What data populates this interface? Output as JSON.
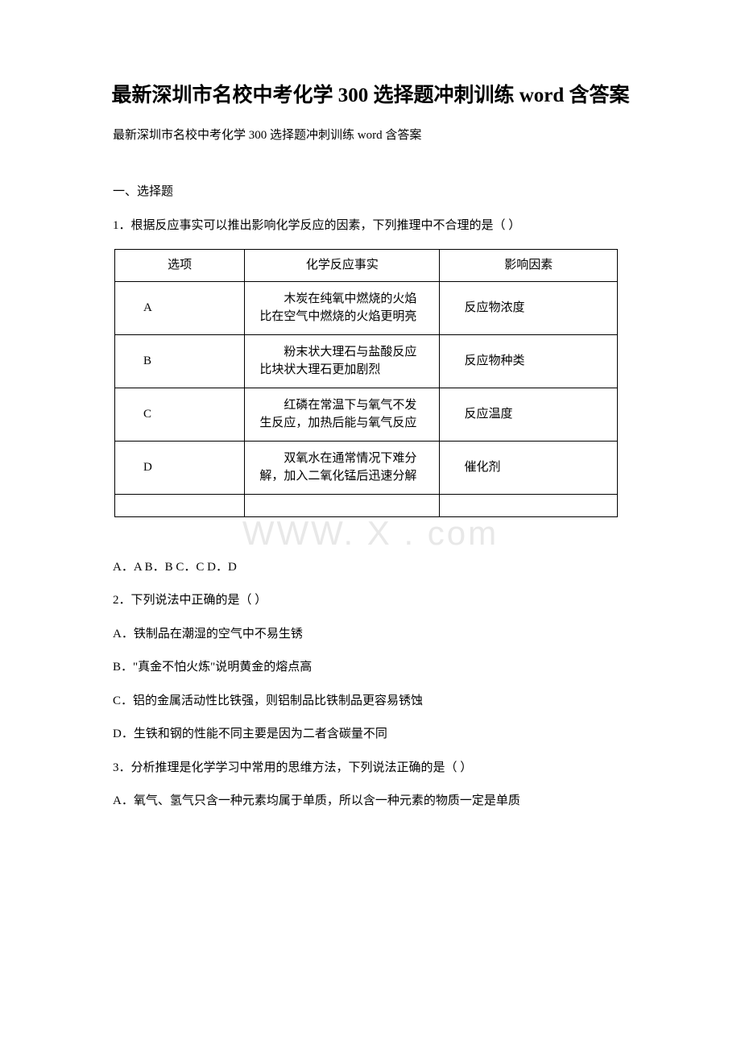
{
  "title": "最新深圳市名校中考化学 300 选择题冲刺训练 word 含答案",
  "subtitle": "最新深圳市名校中考化学 300 选择题冲刺训练 word 含答案",
  "watermark": "WWW.                    X  .  com",
  "section1": "一、选择题",
  "q1": {
    "stem": "1．根据反应事实可以推出影响化学反应的因素，下列推理中不合理的是（ ）",
    "table": {
      "headers": [
        "选项",
        "化学反应事实",
        "影响因素"
      ],
      "rows": [
        [
          "A",
          "木炭在纯氧中燃烧的火焰比在空气中燃烧的火焰更明亮",
          "反应物浓度"
        ],
        [
          "B",
          "粉末状大理石与盐酸反应比块状大理石更加剧烈",
          "反应物种类"
        ],
        [
          "C",
          "红磷在常温下与氧气不发生反应，加热后能与氧气反应",
          "反应温度"
        ],
        [
          "D",
          "双氧水在通常情况下难分解，加入二氧化锰后迅速分解",
          "催化剂"
        ]
      ]
    },
    "options": "A．A B．B C．C D．D"
  },
  "q2": {
    "stem": "2．下列说法中正确的是（ ）",
    "a": "A．铁制品在潮湿的空气中不易生锈",
    "b": "B．\"真金不怕火炼\"说明黄金的熔点高",
    "c": "C．铝的金属活动性比铁强，则铝制品比铁制品更容易锈蚀",
    "d": "D．生铁和钢的性能不同主要是因为二者含碳量不同"
  },
  "q3": {
    "stem": "3．分析推理是化学学习中常用的思维方法，下列说法正确的是（ ）",
    "a": "A．氧气、氢气只含一种元素均属于单质，所以含一种元素的物质一定是单质"
  }
}
